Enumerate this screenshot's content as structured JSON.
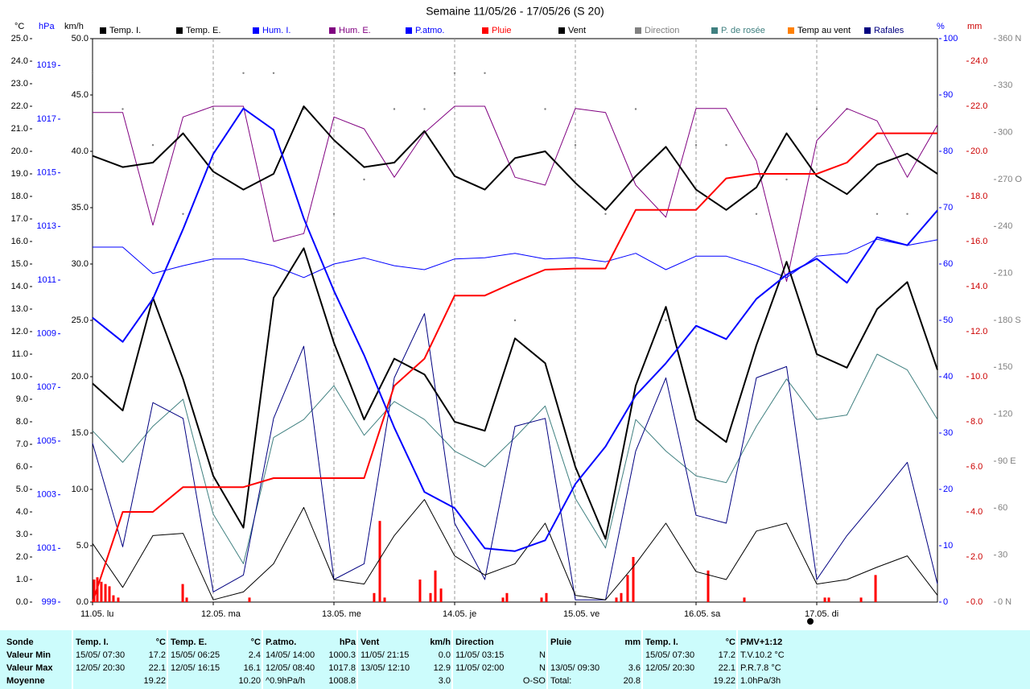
{
  "chart_data": {
    "type": "line",
    "title": "Semaine 11/05/26 - 17/05/26 (S 20)",
    "xlim": [
      0,
      7
    ],
    "xticks": [
      {
        "value": 0,
        "label": "11.05. lu"
      },
      {
        "value": 1,
        "label": "12.05. ma"
      },
      {
        "value": 2,
        "label": "13.05. me"
      },
      {
        "value": 3,
        "label": "14.05. je"
      },
      {
        "value": 4,
        "label": "15.05. ve"
      },
      {
        "value": 5,
        "label": "16.05. sa"
      },
      {
        "value": 6,
        "label": "17.05. di"
      }
    ],
    "grid": true,
    "axes": {
      "c": {
        "label": "°C",
        "color": "#000000",
        "lim": [
          0,
          25
        ],
        "ticks": [
          {
            "value": 0,
            "label": "0.0"
          },
          {
            "value": 1,
            "label": "1.0"
          },
          {
            "value": 2,
            "label": "2.0"
          },
          {
            "value": 3,
            "label": "3.0"
          },
          {
            "value": 4,
            "label": "4.0"
          },
          {
            "value": 5,
            "label": "5.0"
          },
          {
            "value": 6,
            "label": "6.0"
          },
          {
            "value": 7,
            "label": "7.0"
          },
          {
            "value": 8,
            "label": "8.0"
          },
          {
            "value": 9,
            "label": "9.0"
          },
          {
            "value": 10,
            "label": "10.0"
          },
          {
            "value": 11,
            "label": "11.0"
          },
          {
            "value": 12,
            "label": "12.0"
          },
          {
            "value": 13,
            "label": "13.0"
          },
          {
            "value": 14,
            "label": "14.0"
          },
          {
            "value": 15,
            "label": "15.0"
          },
          {
            "value": 16,
            "label": "16.0"
          },
          {
            "value": 17,
            "label": "17.0"
          },
          {
            "value": 18,
            "label": "18.0"
          },
          {
            "value": 19,
            "label": "19.0"
          },
          {
            "value": 20,
            "label": "20.0"
          },
          {
            "value": 21,
            "label": "21.0"
          },
          {
            "value": 22,
            "label": "22.0"
          },
          {
            "value": 23,
            "label": "23.0"
          },
          {
            "value": 24,
            "label": "24.0"
          },
          {
            "value": 25,
            "label": "25.0"
          }
        ]
      },
      "hpa": {
        "label": "hPa",
        "color": "#0000ff",
        "lim": [
          999,
          1020
        ],
        "ticks": [
          999,
          1001,
          1003,
          1005,
          1007,
          1009,
          1011,
          1013,
          1015,
          1017,
          1019
        ]
      },
      "kmh": {
        "label": "km/h",
        "color": "#000000",
        "lim": [
          0,
          50
        ],
        "ticks": [
          {
            "value": 0,
            "label": "0.0"
          },
          {
            "value": 5,
            "label": "5.0"
          },
          {
            "value": 10,
            "label": "10.0"
          },
          {
            "value": 15,
            "label": "15.0"
          },
          {
            "value": 20,
            "label": "20.0"
          },
          {
            "value": 25,
            "label": "25.0"
          },
          {
            "value": 30,
            "label": "30.0"
          },
          {
            "value": 35,
            "label": "35.0"
          },
          {
            "value": 40,
            "label": "40.0"
          },
          {
            "value": 45,
            "label": "45.0"
          },
          {
            "value": 50,
            "label": "50.0"
          }
        ]
      },
      "pct": {
        "label": "%",
        "color": "#0000ff",
        "lim": [
          0,
          100
        ],
        "ticks": [
          0,
          10,
          20,
          30,
          40,
          50,
          60,
          70,
          80,
          90,
          100
        ]
      },
      "mm": {
        "label": "mm",
        "color": "#cc0000",
        "lim": [
          0,
          25
        ],
        "ticks": [
          {
            "value": 0,
            "label": "0.0"
          },
          {
            "value": 2,
            "label": "2.0"
          },
          {
            "value": 4,
            "label": "4.0"
          },
          {
            "value": 6,
            "label": "6.0"
          },
          {
            "value": 8,
            "label": "8.0"
          },
          {
            "value": 10,
            "label": "10.0"
          },
          {
            "value": 12,
            "label": "12.0"
          },
          {
            "value": 14,
            "label": "14.0"
          },
          {
            "value": 16,
            "label": "16.0"
          },
          {
            "value": 18,
            "label": "18.0"
          },
          {
            "value": 20,
            "label": "20.0"
          },
          {
            "value": 22,
            "label": "22.0"
          },
          {
            "value": 24,
            "label": "24.0"
          }
        ]
      },
      "deg": {
        "color": "#808080",
        "lim": [
          0,
          360
        ],
        "ticks": [
          {
            "value": 0,
            "label": "0 N"
          },
          30,
          60,
          {
            "value": 90,
            "label": "90 E"
          },
          120,
          150,
          {
            "value": 180,
            "label": "180 S"
          },
          210,
          240,
          {
            "value": 270,
            "label": "270 O"
          },
          300,
          330,
          {
            "value": 360,
            "label": "360 N"
          }
        ]
      }
    },
    "x": [
      0,
      0.25,
      0.5,
      0.75,
      1,
      1.25,
      1.5,
      1.75,
      2,
      2.25,
      2.5,
      2.75,
      3,
      3.25,
      3.5,
      3.75,
      4,
      4.25,
      4.5,
      4.75,
      5,
      5.25,
      5.5,
      5.75,
      6,
      6.25,
      6.5,
      6.75,
      7
    ],
    "series": [
      {
        "name": "Temp. I.",
        "color": "#000000",
        "axis": "c",
        "width": 2,
        "values": [
          19.8,
          19.3,
          19.5,
          20.8,
          19.1,
          18.3,
          19.0,
          22.0,
          20.5,
          19.3,
          19.5,
          20.9,
          18.9,
          18.3,
          19.7,
          20.0,
          18.6,
          17.4,
          18.9,
          20.2,
          18.3,
          17.4,
          18.4,
          20.8,
          18.9,
          18.1,
          19.4,
          19.9,
          19.0
        ]
      },
      {
        "name": "Temp. E.",
        "color": "#000000",
        "axis": "c",
        "width": 2,
        "values": [
          9.7,
          8.5,
          13.5,
          9.9,
          5.6,
          3.3,
          13.5,
          15.7,
          11.5,
          8.1,
          10.8,
          10.1,
          8.0,
          7.6,
          11.7,
          10.6,
          6.0,
          2.8,
          9.6,
          13.1,
          8.1,
          7.1,
          11.4,
          15.1,
          11.0,
          10.4,
          13.0,
          14.2,
          10.3
        ]
      },
      {
        "name": "Hum. I.",
        "color": "#0000ff",
        "axis": "pct",
        "width": 1,
        "values": [
          63.0,
          63.0,
          58.3,
          59.7,
          60.9,
          60.9,
          59.7,
          57.6,
          60.0,
          61.1,
          59.7,
          59.0,
          60.9,
          61.1,
          61.9,
          60.9,
          61.1,
          60.4,
          61.9,
          59.0,
          61.4,
          61.4,
          59.7,
          57.6,
          61.4,
          61.9,
          64.4,
          63.3,
          64.3
        ]
      },
      {
        "name": "Hum. E.",
        "color": "#800080",
        "axis": "pct",
        "width": 1,
        "values": [
          86.9,
          86.9,
          66.9,
          86.1,
          88.0,
          88.0,
          64.0,
          65.4,
          86.1,
          84.0,
          75.4,
          83.3,
          88.0,
          88.0,
          75.4,
          74.0,
          87.6,
          86.9,
          74.0,
          68.3,
          87.6,
          87.6,
          78.3,
          56.9,
          81.9,
          87.6,
          85.4,
          75.4,
          84.7
        ]
      },
      {
        "name": "P.atmo.",
        "color": "#0000ff",
        "axis": "hpa",
        "width": 2,
        "values": [
          1009.6,
          1008.7,
          1010.3,
          1012.9,
          1015.7,
          1017.4,
          1016.6,
          1013.3,
          1010.6,
          1008.2,
          1005.5,
          1003.1,
          1002.5,
          1001.0,
          1000.9,
          1001.3,
          1003.4,
          1004.8,
          1006.7,
          1007.9,
          1009.3,
          1008.8,
          1010.3,
          1011.2,
          1011.8,
          1010.9,
          1012.6,
          1012.3,
          1013.6
        ]
      },
      {
        "name": "Pluie",
        "color": "#ff0000",
        "axis": "mm",
        "width": 2,
        "values": [
          0.0,
          4.0,
          4.0,
          5.1,
          5.1,
          5.1,
          5.5,
          5.5,
          5.5,
          5.5,
          9.6,
          10.8,
          13.6,
          13.6,
          14.2,
          14.75,
          14.8,
          14.8,
          17.4,
          17.4,
          17.4,
          18.8,
          19.0,
          19.0,
          19.0,
          19.5,
          20.8,
          20.8,
          20.8
        ]
      },
      {
        "name": "Vent",
        "color": "#000000",
        "axis": "kmh",
        "width": 1,
        "values": [
          5.2,
          1.3,
          5.9,
          6.1,
          0.2,
          0.9,
          3.4,
          8.4,
          2.0,
          1.6,
          5.9,
          9.1,
          4.1,
          2.4,
          3.4,
          7.0,
          0.6,
          0.2,
          3.4,
          7.0,
          2.7,
          2.0,
          6.3,
          7.0,
          1.6,
          2.0,
          3.1,
          4.1,
          0.6
        ]
      },
      {
        "name": "Direction",
        "color": "#808080",
        "axis": "deg",
        "marker": "dot",
        "values": [
          338,
          315,
          292,
          248,
          315,
          338,
          338,
          315,
          248,
          270,
          315,
          315,
          338,
          338,
          180,
          315,
          292,
          248,
          315,
          180,
          292,
          292,
          248,
          270,
          315,
          315,
          248,
          248,
          315
        ]
      },
      {
        "name": "P. de rosée",
        "color": "#408080",
        "axis": "c",
        "width": 1,
        "values": [
          7.6,
          6.2,
          7.8,
          9.0,
          3.9,
          1.7,
          7.3,
          8.1,
          9.6,
          7.4,
          8.9,
          8.1,
          6.7,
          6.0,
          7.3,
          8.7,
          4.6,
          2.4,
          8.1,
          6.7,
          5.6,
          5.3,
          7.8,
          9.9,
          8.1,
          8.3,
          11.0,
          10.3,
          8.1
        ]
      },
      {
        "name": "Temp au vent",
        "color": "#ff8000",
        "axis": "c",
        "width": 1,
        "values": [
          9.7,
          8.5,
          13.5,
          9.9,
          5.6,
          3.3,
          13.5,
          15.7,
          11.5,
          8.1,
          10.8,
          10.1,
          8.0,
          7.6,
          11.7,
          10.6,
          6.0,
          2.8,
          9.6,
          13.1,
          8.1,
          7.1,
          11.4,
          15.1,
          11.0,
          10.4,
          13.0,
          14.2,
          10.3
        ]
      },
      {
        "name": "Rafales",
        "color": "#000080",
        "axis": "kmh",
        "width": 1,
        "values": [
          14.1,
          4.9,
          17.7,
          16.3,
          0.9,
          2.4,
          16.3,
          22.7,
          2.0,
          3.4,
          19.9,
          25.6,
          7.0,
          2.0,
          15.6,
          16.3,
          0.2,
          0.2,
          13.4,
          19.9,
          7.7,
          7.0,
          19.9,
          20.9,
          2.0,
          5.9,
          9.1,
          12.4,
          1.6
        ]
      }
    ],
    "rain_bars": {
      "color": "#ff0000",
      "axis": "mm",
      "x": [
        0.013,
        0.04,
        0.073,
        0.107,
        0.14,
        0.173,
        0.213,
        0.747,
        0.78,
        1.3,
        2.333,
        2.38,
        2.42,
        2.713,
        2.8,
        2.84,
        2.887,
        3.4,
        3.433,
        3.72,
        3.76,
        4.34,
        4.38,
        4.433,
        4.48,
        5.1,
        5.4,
        6.067,
        6.1,
        6.367,
        6.487
      ],
      "values": [
        1.0,
        1.1,
        0.9,
        0.8,
        0.7,
        0.3,
        0.2,
        0.8,
        0.2,
        0.2,
        0.4,
        3.6,
        0.2,
        1.0,
        0.4,
        1.4,
        0.6,
        0.2,
        0.4,
        0.2,
        0.4,
        0.2,
        0.4,
        1.2,
        2.0,
        1.4,
        0.2,
        0.2,
        0.2,
        0.2,
        1.2
      ]
    }
  },
  "table": {
    "title": "Sonde",
    "columns": [
      {
        "title": "Temp. I.",
        "unit": "°C"
      },
      {
        "title": "Temp. E.",
        "unit": "°C"
      },
      {
        "title": "P.atmo.",
        "unit": "hPa"
      },
      {
        "title": "Vent",
        "unit": "km/h"
      },
      {
        "title": "Direction",
        "unit": null
      },
      {
        "title": "Pluie",
        "unit": "mm"
      },
      {
        "title": "Temp. I.",
        "unit": "°C"
      },
      {
        "title": "PMV+1:12",
        "unit": null
      }
    ],
    "rows": [
      {
        "label": "Valeur Min",
        "cells": [
          [
            "15/05/ 07:30",
            "17.2"
          ],
          [
            "15/05/ 06:25",
            "2.4"
          ],
          [
            "14/05/ 14:00",
            "1000.3"
          ],
          [
            "11/05/ 21:15",
            "0.0"
          ],
          [
            "11/05/ 03:15",
            "N"
          ],
          [
            null,
            null
          ],
          [
            "15/05/ 07:30",
            "17.2"
          ],
          [
            "T.V.10.2 °C",
            null
          ]
        ]
      },
      {
        "label": "Valeur Max",
        "cells": [
          [
            "12/05/ 20:30",
            "22.1"
          ],
          [
            "12/05/ 16:15",
            "16.1"
          ],
          [
            "12/05/ 08:40",
            "1017.8"
          ],
          [
            "13/05/ 12:10",
            "12.9"
          ],
          [
            "11/05/ 02:00",
            "N"
          ],
          [
            "13/05/ 09:30",
            "3.6"
          ],
          [
            "12/05/ 20:30",
            "22.1"
          ],
          [
            "P.R.7.8 °C",
            null
          ]
        ]
      },
      {
        "label": "Moyenne",
        "cells": [
          [
            null,
            "19.22"
          ],
          [
            null,
            "10.20"
          ],
          [
            "^0.9hPa/h",
            "1008.8"
          ],
          [
            null,
            "3.0"
          ],
          [
            null,
            "O-SO"
          ],
          [
            "Total:",
            "20.8"
          ],
          [
            null,
            "19.22"
          ],
          [
            "1.0hPa/3h",
            null
          ]
        ]
      }
    ]
  }
}
